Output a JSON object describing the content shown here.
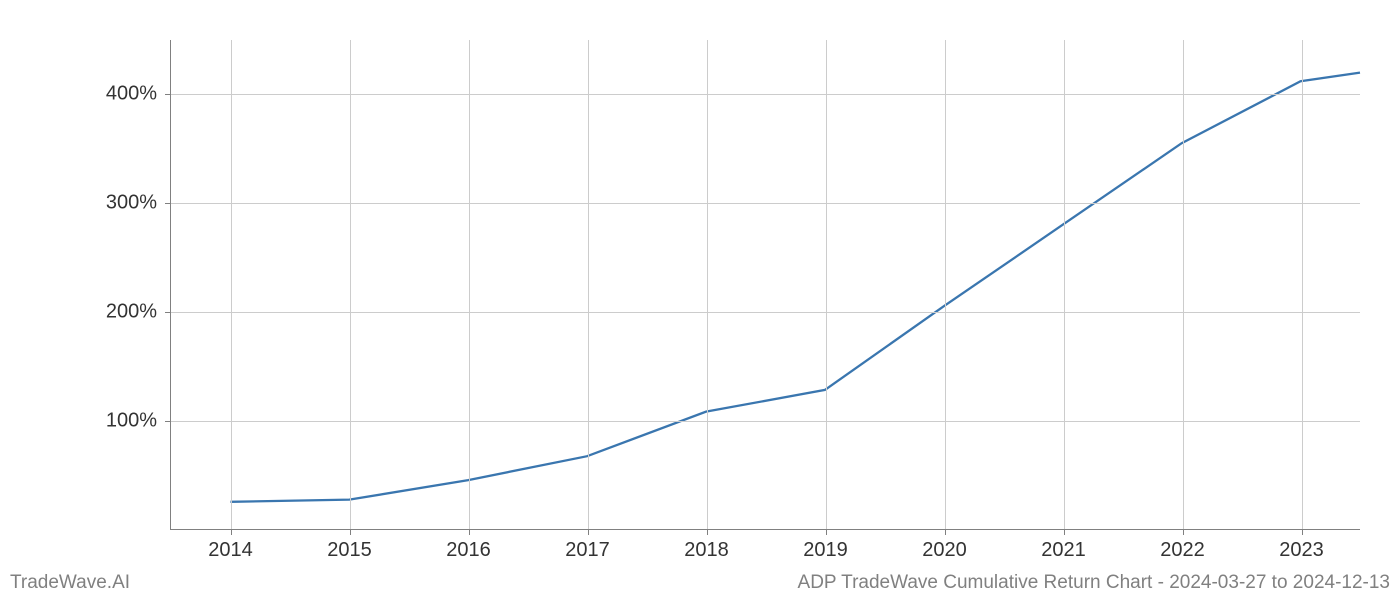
{
  "chart": {
    "type": "line",
    "background_color": "#ffffff",
    "grid_color": "#cccccc",
    "axis_color": "#808080",
    "tick_font_size": 20,
    "tick_color": "#333333",
    "line_color": "#3a76af",
    "line_width": 2.3,
    "x": {
      "min": 2013.5,
      "max": 2023.5,
      "ticks": [
        2014,
        2015,
        2016,
        2017,
        2018,
        2019,
        2020,
        2021,
        2022,
        2023
      ],
      "tick_labels": [
        "2014",
        "2015",
        "2016",
        "2017",
        "2018",
        "2019",
        "2020",
        "2021",
        "2022",
        "2023"
      ]
    },
    "y": {
      "min": 0,
      "max": 450,
      "ticks": [
        100,
        200,
        300,
        400
      ],
      "tick_labels": [
        "100%",
        "200%",
        "300%",
        "400%"
      ]
    },
    "series": {
      "x_values": [
        2014,
        2015,
        2016,
        2017,
        2018,
        2019,
        2020,
        2021,
        2022,
        2023,
        2023.5
      ],
      "y_values": [
        25,
        27,
        45,
        67,
        108,
        128,
        205,
        280,
        355,
        412,
        420
      ]
    }
  },
  "footer": {
    "left": "TradeWave.AI",
    "right": "ADP TradeWave Cumulative Return Chart - 2024-03-27 to 2024-12-13"
  }
}
